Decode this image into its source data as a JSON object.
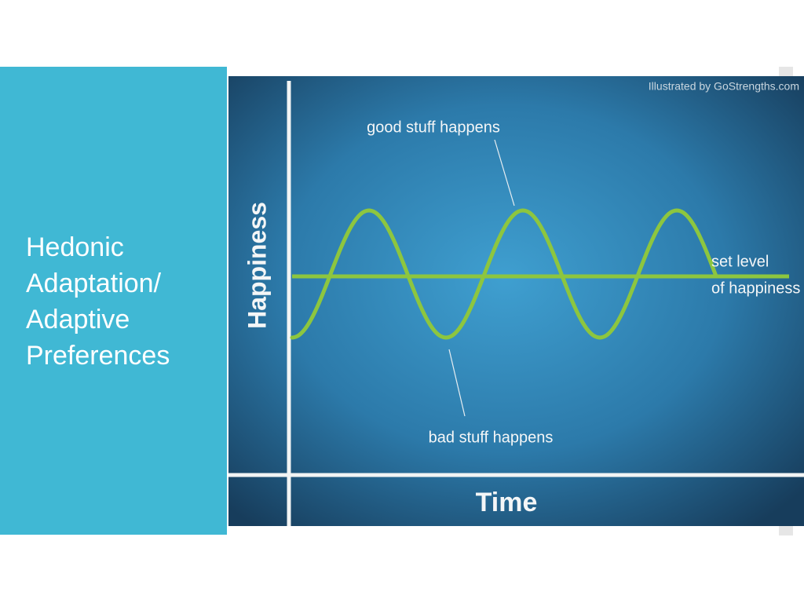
{
  "slide": {
    "title_lines": [
      "Hedonic",
      "Adaptation/",
      "Adaptive",
      "Preferences"
    ],
    "figure": {
      "credit": "Illustrated by GoStrengths.com",
      "y_axis_label": "Happiness",
      "x_axis_label": "Time",
      "peak_annotation": "good stuff happens",
      "trough_annotation": "bad stuff happens",
      "baseline_annotation_lines": [
        "set level",
        "of happiness"
      ]
    }
  }
}
